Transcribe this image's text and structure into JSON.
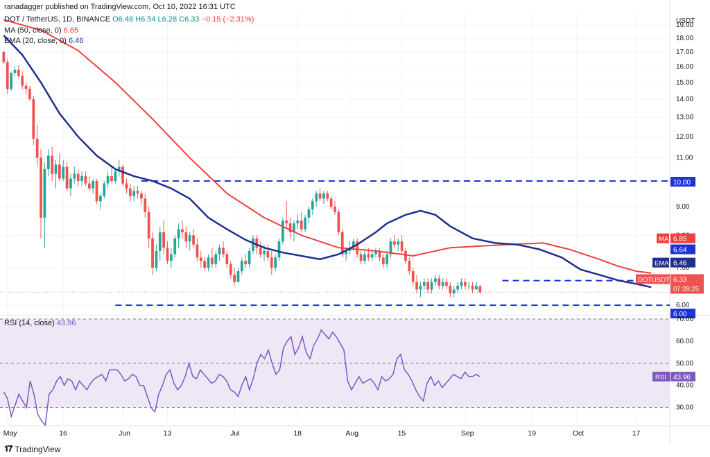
{
  "publisher_line": "ranadagger published on TradingView.com, Oct 10, 2022 16:31 UTC",
  "symbol_line": {
    "pair": "DOT / TetherUS, 1D, BINANCE",
    "o": "O6.48",
    "h": "H6.54",
    "l": "L6.28",
    "c": "C6.33",
    "change": "−0.15 (−2.31%)"
  },
  "ma_line": {
    "label": "MA (50, close, 0)",
    "value": "6.85"
  },
  "ema_line": {
    "label": "EMA (20, close, 0)",
    "value": "6.46"
  },
  "rsi_line": {
    "label": "RSI (14, close)",
    "value": "43.96"
  },
  "brand": "TradingView",
  "colors": {
    "up": "#26a69a",
    "down": "#ef5350",
    "ma": "#f23f3f",
    "ema": "#1e2f8f",
    "level": "#1d33d6",
    "rsi": "#7e57c2",
    "rsi_band": "#ede7f6",
    "grid": "#f0f3fa"
  },
  "chart_data": [
    {
      "type": "candlestick",
      "title": "DOT / TetherUS, 1D, BINANCE",
      "ylabel": "USDT",
      "ylim": [
        5.8,
        20.0
      ],
      "log_scale": true,
      "y_ticks": [
        "19.00",
        "18.00",
        "17.00",
        "16.00",
        "15.00",
        "14.00",
        "13.00",
        "12.00",
        "11.00",
        "10.00",
        "9.00",
        "8.00",
        "7.00",
        "6.00"
      ],
      "x_ticks": [
        {
          "label": "May",
          "date": "2022-05-01"
        },
        {
          "label": "16",
          "date": "2022-05-16"
        },
        {
          "label": "Jun",
          "date": "2022-06-01"
        },
        {
          "label": "13",
          "date": "2022-06-13"
        },
        {
          "label": "Jul",
          "date": "2022-07-01"
        },
        {
          "label": "18",
          "date": "2022-07-18"
        },
        {
          "label": "Aug",
          "date": "2022-08-01"
        },
        {
          "label": "15",
          "date": "2022-08-15"
        },
        {
          "label": "Sep",
          "date": "2022-09-01"
        },
        {
          "label": "19",
          "date": "2022-09-19"
        },
        {
          "label": "Oct",
          "date": "2022-10-01"
        },
        {
          "label": "17",
          "date": "2022-10-17"
        }
      ],
      "x_range": [
        "2022-04-29",
        "2022-10-26"
      ],
      "first_candle_date": "2022-04-30",
      "candles": [
        [
          17.0,
          17.1,
          16.2,
          16.3
        ],
        [
          16.3,
          16.5,
          14.3,
          14.6
        ],
        [
          14.6,
          15.7,
          14.5,
          15.6
        ],
        [
          15.6,
          16.0,
          15.4,
          15.8
        ],
        [
          15.8,
          16.1,
          15.3,
          15.4
        ],
        [
          15.4,
          15.7,
          14.6,
          14.8
        ],
        [
          14.8,
          15.0,
          14.3,
          14.6
        ],
        [
          14.6,
          14.8,
          13.9,
          14.0
        ],
        [
          14.0,
          14.2,
          11.6,
          11.9
        ],
        [
          11.9,
          12.6,
          10.6,
          11.0
        ],
        [
          11.0,
          11.4,
          7.9,
          8.6
        ],
        [
          8.6,
          10.8,
          7.6,
          10.5
        ],
        [
          10.5,
          11.4,
          10.2,
          11.1
        ],
        [
          11.1,
          11.5,
          10.0,
          10.3
        ],
        [
          10.3,
          10.9,
          9.7,
          10.7
        ],
        [
          10.7,
          11.2,
          10.0,
          10.1
        ],
        [
          10.1,
          10.9,
          10.0,
          10.6
        ],
        [
          10.6,
          10.8,
          9.6,
          9.7
        ],
        [
          9.7,
          10.3,
          9.4,
          10.1
        ],
        [
          10.1,
          10.6,
          9.9,
          10.3
        ],
        [
          10.3,
          10.5,
          9.8,
          10.0
        ],
        [
          10.0,
          10.4,
          9.8,
          10.2
        ],
        [
          10.2,
          10.4,
          9.8,
          9.9
        ],
        [
          9.9,
          10.2,
          9.6,
          9.7
        ],
        [
          9.7,
          10.1,
          9.5,
          10.0
        ],
        [
          10.0,
          10.1,
          9.1,
          9.2
        ],
        [
          9.2,
          9.5,
          8.9,
          9.4
        ],
        [
          9.4,
          10.0,
          9.3,
          9.9
        ],
        [
          9.9,
          10.4,
          9.7,
          10.2
        ],
        [
          10.2,
          10.6,
          9.9,
          10.0
        ],
        [
          10.0,
          10.5,
          9.9,
          10.4
        ],
        [
          10.4,
          10.9,
          10.2,
          10.6
        ],
        [
          10.6,
          10.7,
          9.8,
          9.9
        ],
        [
          9.9,
          10.1,
          9.5,
          9.7
        ],
        [
          9.7,
          9.9,
          9.2,
          9.4
        ],
        [
          9.4,
          9.8,
          9.2,
          9.6
        ],
        [
          9.6,
          9.8,
          9.3,
          9.5
        ],
        [
          9.5,
          9.6,
          9.1,
          9.3
        ],
        [
          9.3,
          9.5,
          8.6,
          8.8
        ],
        [
          8.8,
          9.0,
          7.6,
          7.9
        ],
        [
          7.9,
          8.1,
          6.8,
          7.0
        ],
        [
          7.0,
          7.7,
          6.9,
          7.5
        ],
        [
          7.5,
          8.3,
          7.2,
          8.1
        ],
        [
          8.1,
          8.5,
          7.4,
          7.6
        ],
        [
          7.6,
          7.8,
          7.1,
          7.2
        ],
        [
          7.2,
          7.6,
          7.0,
          7.4
        ],
        [
          7.4,
          8.0,
          7.3,
          7.9
        ],
        [
          7.9,
          8.4,
          7.6,
          8.2
        ],
        [
          8.2,
          8.5,
          7.9,
          8.1
        ],
        [
          8.1,
          8.3,
          7.6,
          7.8
        ],
        [
          7.8,
          8.1,
          7.5,
          8.0
        ],
        [
          8.0,
          8.2,
          7.6,
          7.7
        ],
        [
          7.7,
          7.9,
          7.2,
          7.3
        ],
        [
          7.3,
          7.5,
          7.0,
          7.2
        ],
        [
          7.2,
          7.3,
          6.9,
          7.0
        ],
        [
          7.0,
          7.4,
          6.9,
          7.3
        ],
        [
          7.3,
          7.6,
          7.0,
          7.1
        ],
        [
          7.1,
          7.5,
          7.0,
          7.4
        ],
        [
          7.4,
          7.7,
          7.2,
          7.6
        ],
        [
          7.6,
          7.8,
          7.3,
          7.4
        ],
        [
          7.4,
          7.5,
          7.0,
          7.1
        ],
        [
          7.1,
          7.2,
          6.7,
          6.8
        ],
        [
          6.8,
          7.0,
          6.5,
          6.6
        ],
        [
          6.6,
          7.0,
          6.6,
          6.9
        ],
        [
          6.9,
          7.3,
          6.8,
          7.2
        ],
        [
          7.2,
          7.4,
          7.0,
          7.1
        ],
        [
          7.1,
          7.6,
          7.0,
          7.5
        ],
        [
          7.5,
          8.0,
          7.4,
          7.9
        ],
        [
          7.9,
          8.0,
          7.4,
          7.6
        ],
        [
          7.6,
          7.8,
          7.3,
          7.4
        ],
        [
          7.4,
          7.7,
          7.2,
          7.5
        ],
        [
          7.5,
          7.7,
          7.2,
          7.3
        ],
        [
          7.3,
          7.5,
          6.8,
          7.0
        ],
        [
          7.0,
          7.4,
          6.9,
          7.3
        ],
        [
          7.3,
          7.9,
          7.2,
          7.8
        ],
        [
          7.8,
          8.6,
          7.7,
          8.5
        ],
        [
          8.5,
          9.2,
          8.2,
          8.4
        ],
        [
          8.4,
          8.6,
          7.9,
          8.1
        ],
        [
          8.1,
          8.5,
          7.8,
          8.4
        ],
        [
          8.4,
          8.7,
          8.2,
          8.5
        ],
        [
          8.5,
          8.8,
          8.1,
          8.2
        ],
        [
          8.2,
          8.7,
          8.1,
          8.6
        ],
        [
          8.6,
          9.0,
          8.4,
          8.9
        ],
        [
          8.9,
          9.3,
          8.7,
          9.2
        ],
        [
          9.2,
          9.6,
          9.0,
          9.5
        ],
        [
          9.5,
          9.7,
          9.2,
          9.3
        ],
        [
          9.3,
          9.6,
          9.1,
          9.5
        ],
        [
          9.5,
          9.6,
          9.2,
          9.3
        ],
        [
          9.3,
          9.4,
          8.9,
          9.0
        ],
        [
          9.0,
          9.2,
          8.7,
          8.8
        ],
        [
          8.8,
          8.9,
          8.0,
          8.1
        ],
        [
          8.1,
          8.2,
          7.3,
          7.4
        ],
        [
          7.4,
          7.6,
          7.2,
          7.5
        ],
        [
          7.5,
          7.8,
          7.4,
          7.6
        ],
        [
          7.6,
          7.9,
          7.5,
          7.8
        ],
        [
          7.8,
          7.9,
          7.3,
          7.4
        ],
        [
          7.4,
          7.5,
          7.1,
          7.2
        ],
        [
          7.2,
          7.5,
          7.1,
          7.4
        ],
        [
          7.4,
          7.6,
          7.2,
          7.3
        ],
        [
          7.3,
          7.5,
          7.2,
          7.4
        ],
        [
          7.4,
          7.6,
          7.3,
          7.5
        ],
        [
          7.5,
          7.6,
          7.2,
          7.3
        ],
        [
          7.3,
          7.4,
          7.0,
          7.1
        ],
        [
          7.1,
          7.5,
          7.0,
          7.4
        ],
        [
          7.4,
          7.9,
          7.3,
          7.8
        ],
        [
          7.8,
          8.0,
          7.6,
          7.7
        ],
        [
          7.7,
          7.9,
          7.5,
          7.8
        ],
        [
          7.8,
          8.0,
          7.4,
          7.5
        ],
        [
          7.5,
          7.6,
          7.1,
          7.2
        ],
        [
          7.2,
          7.3,
          6.8,
          6.9
        ],
        [
          6.9,
          7.0,
          6.5,
          6.6
        ],
        [
          6.6,
          6.8,
          6.3,
          6.4
        ],
        [
          6.4,
          6.6,
          6.2,
          6.5
        ],
        [
          6.5,
          6.7,
          6.4,
          6.6
        ],
        [
          6.6,
          6.7,
          6.3,
          6.4
        ],
        [
          6.4,
          6.7,
          6.3,
          6.6
        ],
        [
          6.6,
          6.8,
          6.5,
          6.7
        ],
        [
          6.7,
          6.8,
          6.4,
          6.5
        ],
        [
          6.5,
          6.7,
          6.4,
          6.6
        ],
        [
          6.6,
          6.7,
          6.4,
          6.5
        ],
        [
          6.5,
          6.6,
          6.2,
          6.3
        ],
        [
          6.3,
          6.5,
          6.2,
          6.4
        ],
        [
          6.4,
          6.6,
          6.3,
          6.5
        ],
        [
          6.5,
          6.7,
          6.4,
          6.6
        ],
        [
          6.6,
          6.7,
          6.4,
          6.5
        ],
        [
          6.5,
          6.6,
          6.4,
          6.5
        ],
        [
          6.5,
          6.6,
          6.3,
          6.4
        ],
        [
          6.4,
          6.6,
          6.4,
          6.5
        ],
        [
          6.48,
          6.54,
          6.28,
          6.33
        ]
      ],
      "ma50": {
        "name": "MA",
        "label": "MA (50, close, 0)",
        "value": 6.85,
        "points": [
          [
            0,
            19.4
          ],
          [
            10,
            18.6
          ],
          [
            20,
            17.1
          ],
          [
            30,
            15.0
          ],
          [
            40,
            12.9
          ],
          [
            50,
            11.0
          ],
          [
            60,
            9.5
          ],
          [
            70,
            8.6
          ],
          [
            80,
            8.0
          ],
          [
            90,
            7.6
          ],
          [
            100,
            7.5
          ],
          [
            110,
            7.35
          ],
          [
            120,
            7.6
          ],
          [
            135,
            7.7
          ],
          [
            145,
            7.75
          ],
          [
            152,
            7.55
          ],
          [
            160,
            7.25
          ],
          [
            165,
            7.05
          ],
          [
            170,
            6.9
          ],
          [
            174,
            6.85
          ]
        ]
      },
      "ema20": {
        "name": "EMA",
        "label": "EMA (20, close, 0)",
        "value": 6.46,
        "points": [
          [
            0,
            18.2
          ],
          [
            5,
            16.8
          ],
          [
            10,
            15.0
          ],
          [
            15,
            13.2
          ],
          [
            20,
            12.0
          ],
          [
            25,
            11.1
          ],
          [
            30,
            10.5
          ],
          [
            35,
            10.2
          ],
          [
            40,
            10.0
          ],
          [
            45,
            9.7
          ],
          [
            50,
            9.3
          ],
          [
            55,
            8.6
          ],
          [
            60,
            8.2
          ],
          [
            65,
            7.85
          ],
          [
            70,
            7.6
          ],
          [
            75,
            7.45
          ],
          [
            80,
            7.35
          ],
          [
            85,
            7.25
          ],
          [
            90,
            7.4
          ],
          [
            95,
            7.7
          ],
          [
            100,
            8.1
          ],
          [
            103,
            8.4
          ],
          [
            108,
            8.7
          ],
          [
            112,
            8.85
          ],
          [
            116,
            8.7
          ],
          [
            120,
            8.3
          ],
          [
            126,
            7.9
          ],
          [
            132,
            7.75
          ],
          [
            138,
            7.7
          ],
          [
            144,
            7.55
          ],
          [
            150,
            7.3
          ],
          [
            155,
            6.95
          ],
          [
            160,
            6.8
          ],
          [
            165,
            6.65
          ],
          [
            170,
            6.55
          ],
          [
            174,
            6.46
          ]
        ]
      },
      "levels": [
        {
          "value": 10.0,
          "label": "10.00",
          "from": "2022-06-06"
        },
        {
          "value": 6.64,
          "label": "6.64",
          "from": "2022-09-11"
        },
        {
          "value": 6.0,
          "label": "6.00",
          "from": "2022-05-30"
        }
      ],
      "price_labels": [
        {
          "tag": "MA",
          "value": "6.85"
        },
        {
          "tag": "EMA",
          "value": "6.46"
        },
        {
          "tag": "",
          "value": "6.64"
        },
        {
          "tag": "DOTUSDT",
          "value": "6.33",
          "extra": "07:28:25"
        },
        {
          "tag": "",
          "value": "10.00"
        },
        {
          "tag": "",
          "value": "6.00"
        }
      ]
    },
    {
      "type": "line",
      "title": "RSI (14, close)",
      "ylim": [
        23,
        70
      ],
      "y_ticks": [
        "70.00",
        "60.00",
        "50.00",
        "40.00",
        "30.00"
      ],
      "band": [
        30,
        50,
        70
      ],
      "value": 43.96,
      "series": [
        {
          "name": "RSI",
          "values": [
            37,
            34,
            26,
            31,
            36,
            33,
            30,
            42,
            36,
            27,
            24,
            22,
            36,
            38,
            42,
            44,
            40,
            43,
            42,
            38,
            42,
            40,
            38,
            41,
            43,
            44,
            45,
            42,
            47,
            47,
            47,
            45,
            42,
            43,
            45,
            44,
            40,
            40,
            35,
            30,
            28,
            36,
            40,
            45,
            47,
            41,
            38,
            40,
            44,
            50,
            44,
            43,
            47,
            45,
            43,
            41,
            42,
            45,
            44,
            42,
            38,
            37,
            35,
            40,
            44,
            38,
            43,
            50,
            54,
            52,
            56,
            50,
            45,
            47,
            57,
            60,
            62,
            54,
            57,
            62,
            55,
            52,
            58,
            61,
            65,
            63,
            61,
            64,
            62,
            59,
            56,
            42,
            38,
            41,
            44,
            41,
            42,
            43,
            41,
            38,
            44,
            42,
            43,
            45,
            52,
            54,
            47,
            45,
            42,
            38,
            35,
            33,
            41,
            44,
            40,
            42,
            39,
            41,
            43,
            45,
            44,
            43,
            46,
            44,
            44,
            45,
            43.96
          ]
        }
      ],
      "series_start_index": 48
    }
  ]
}
